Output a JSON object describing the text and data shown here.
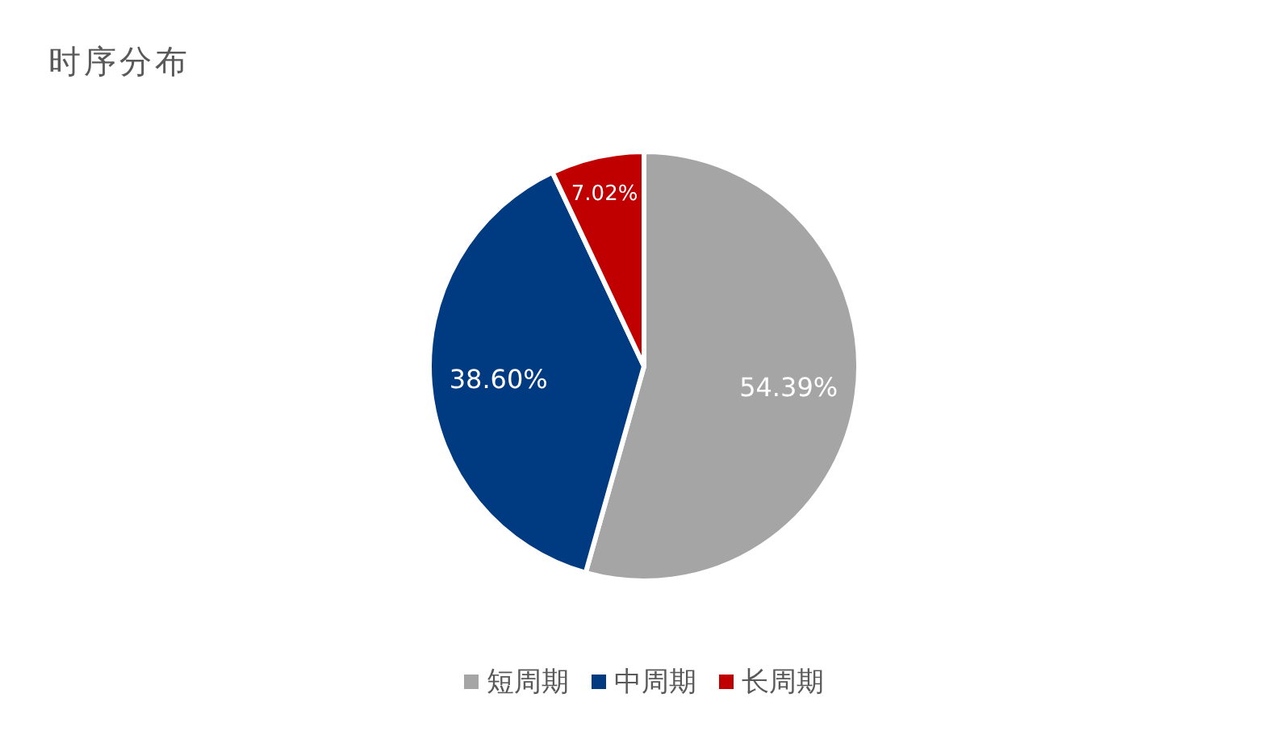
{
  "chart_data": {
    "type": "pie",
    "title": "时序分布",
    "categories": [
      "短周期",
      "中周期",
      "长周期"
    ],
    "values": [
      54.39,
      38.6,
      7.02
    ],
    "colors": [
      "#a5a5a5",
      "#003a80",
      "#c00000"
    ],
    "value_labels": [
      "54.39%",
      "38.60%",
      "7.02%"
    ],
    "legend": "bottom"
  }
}
